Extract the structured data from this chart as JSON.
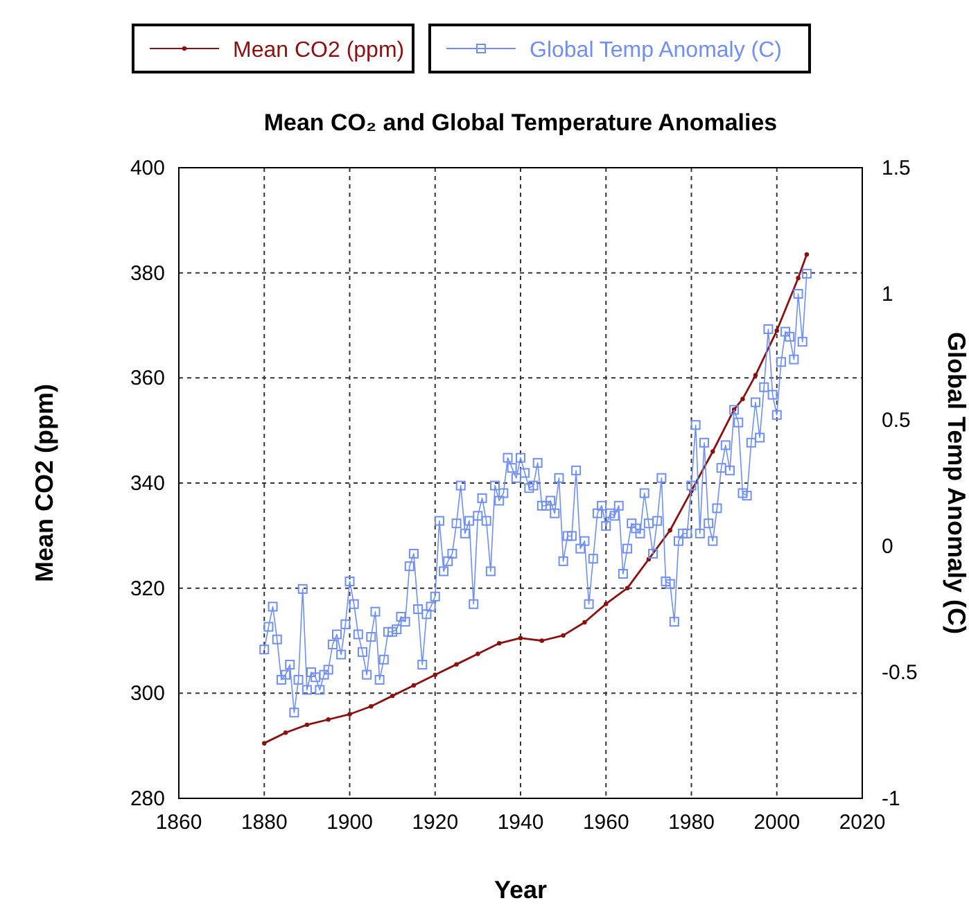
{
  "chart_data": {
    "type": "line",
    "title": "Mean CO₂ and Global Temperature Anomalies",
    "xlabel": "Year",
    "ylabel": "Mean CO2 (ppm)",
    "y2label": "Global Temp Anomaly (C)",
    "xlim": [
      1860,
      2020
    ],
    "xticks": [
      1860,
      1880,
      1900,
      1920,
      1940,
      1960,
      1980,
      2000,
      2020
    ],
    "ylim": [
      280,
      400
    ],
    "yticks": [
      280,
      300,
      320,
      340,
      360,
      380,
      400
    ],
    "y2lim": [
      -1,
      1.5
    ],
    "y2ticks": [
      -1,
      -0.5,
      0,
      0.5,
      1,
      1.5
    ],
    "grid": true,
    "legend": "top",
    "line_style": "solid",
    "series": [
      {
        "name": "Mean CO2 (ppm)",
        "color": "#8b1010",
        "marker": "circle",
        "x": [
          1880,
          1885,
          1890,
          1895,
          1900,
          1905,
          1910,
          1915,
          1920,
          1925,
          1930,
          1935,
          1940,
          1945,
          1950,
          1955,
          1960,
          1965,
          1970,
          1975,
          1980,
          1985,
          1990,
          1992,
          1995,
          2000,
          2005,
          2007
        ],
        "values": [
          290.5,
          292.5,
          294,
          295,
          296,
          297.5,
          299.5,
          301.5,
          303.5,
          305.5,
          307.5,
          309.5,
          310.5,
          310,
          311,
          313.5,
          317,
          320,
          325.5,
          331,
          338.5,
          346,
          354,
          356,
          360.5,
          369,
          379,
          383.5
        ]
      },
      {
        "name": "Global Temp Anomaly (C)",
        "color": "#6f8ff5",
        "marker": "square",
        "axis": "y2",
        "x": [
          1880,
          1881,
          1882,
          1883,
          1884,
          1885,
          1886,
          1887,
          1888,
          1889,
          1890,
          1891,
          1892,
          1893,
          1894,
          1895,
          1896,
          1897,
          1898,
          1899,
          1900,
          1901,
          1902,
          1903,
          1904,
          1905,
          1906,
          1907,
          1908,
          1909,
          1910,
          1911,
          1912,
          1913,
          1914,
          1915,
          1916,
          1917,
          1918,
          1919,
          1920,
          1921,
          1922,
          1923,
          1924,
          1925,
          1926,
          1927,
          1928,
          1929,
          1930,
          1931,
          1932,
          1933,
          1934,
          1935,
          1936,
          1937,
          1938,
          1939,
          1940,
          1941,
          1942,
          1943,
          1944,
          1945,
          1946,
          1947,
          1948,
          1949,
          1950,
          1951,
          1952,
          1953,
          1954,
          1955,
          1956,
          1957,
          1958,
          1959,
          1960,
          1961,
          1962,
          1963,
          1964,
          1965,
          1966,
          1967,
          1968,
          1969,
          1970,
          1971,
          1972,
          1973,
          1974,
          1975,
          1976,
          1977,
          1978,
          1979,
          1980,
          1981,
          1982,
          1983,
          1984,
          1985,
          1986,
          1987,
          1988,
          1989,
          1990,
          1991,
          1992,
          1993,
          1994,
          1995,
          1996,
          1997,
          1998,
          1999,
          2000,
          2001,
          2002,
          2003,
          2004,
          2005,
          2006,
          2007
        ],
        "values": [
          -0.41,
          -0.32,
          -0.24,
          -0.37,
          -0.53,
          -0.51,
          -0.47,
          -0.66,
          -0.53,
          -0.17,
          -0.57,
          -0.5,
          -0.52,
          -0.57,
          -0.51,
          -0.49,
          -0.39,
          -0.35,
          -0.43,
          -0.31,
          -0.14,
          -0.23,
          -0.35,
          -0.42,
          -0.51,
          -0.36,
          -0.26,
          -0.53,
          -0.45,
          -0.34,
          -0.34,
          -0.33,
          -0.28,
          -0.3,
          -0.08,
          -0.03,
          -0.25,
          -0.47,
          -0.27,
          -0.24,
          -0.2,
          0.1,
          -0.1,
          -0.06,
          -0.03,
          0.09,
          0.24,
          0.05,
          0.1,
          -0.23,
          0.12,
          0.19,
          0.1,
          -0.1,
          0.24,
          0.18,
          0.21,
          0.35,
          0.31,
          0.27,
          0.35,
          0.29,
          0.23,
          0.24,
          0.33,
          0.16,
          0.16,
          0.18,
          0.13,
          0.27,
          -0.06,
          0.04,
          0.04,
          0.3,
          -0.01,
          0.02,
          -0.23,
          -0.05,
          0.13,
          0.16,
          0.08,
          0.13,
          0.12,
          0.16,
          -0.11,
          -0.01,
          0.09,
          0.07,
          0.05,
          0.21,
          0.09,
          -0.03,
          0.1,
          0.27,
          -0.14,
          -0.15,
          -0.3,
          0.02,
          0.05,
          0.05,
          0.24,
          0.48,
          0.05,
          0.41,
          0.09,
          0.02,
          0.15,
          0.31,
          0.4,
          0.3,
          0.54,
          0.49,
          0.21,
          0.2,
          0.41,
          0.57,
          0.43,
          0.63,
          0.86,
          0.6,
          0.52,
          0.73,
          0.85,
          0.83,
          0.74,
          1.0,
          0.81,
          1.08
        ]
      }
    ]
  }
}
